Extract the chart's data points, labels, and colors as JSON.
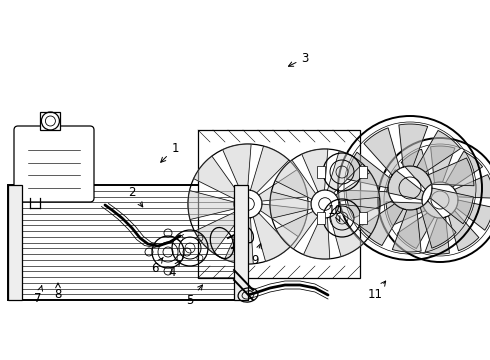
{
  "background_color": "#ffffff",
  "line_color": "#000000",
  "figure_width": 4.9,
  "figure_height": 3.6,
  "dpi": 100,
  "label_data": [
    [
      "1",
      175,
      148,
      158,
      165
    ],
    [
      "2",
      132,
      192,
      145,
      210
    ],
    [
      "3",
      305,
      58,
      285,
      68
    ],
    [
      "4",
      172,
      272,
      182,
      258
    ],
    [
      "5",
      190,
      300,
      205,
      282
    ],
    [
      "6",
      155,
      268,
      165,
      255
    ],
    [
      "7",
      38,
      298,
      42,
      285
    ],
    [
      "8",
      58,
      294,
      58,
      282
    ],
    [
      "9",
      255,
      260,
      262,
      240
    ],
    [
      "10",
      335,
      210,
      340,
      222
    ],
    [
      "11",
      375,
      295,
      388,
      278
    ]
  ]
}
